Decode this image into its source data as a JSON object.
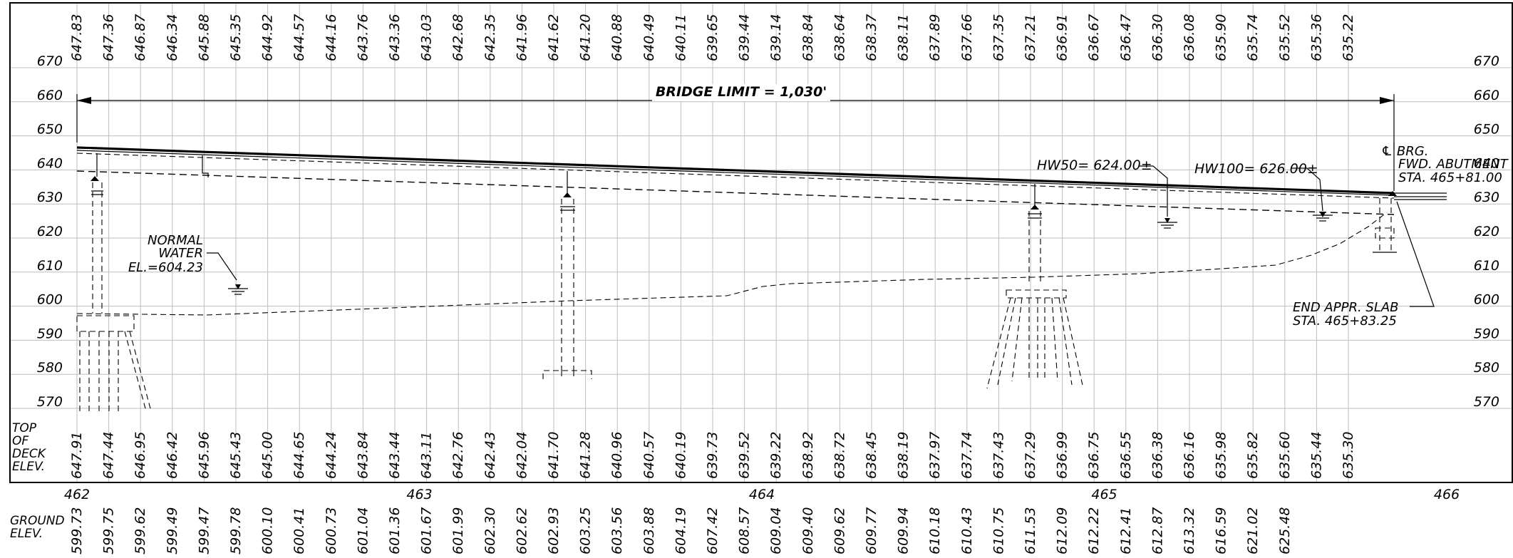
{
  "sheet": {
    "title": "BRIDGE LIMIT = 1,030'",
    "deck_label": [
      "TOP",
      "OF",
      "DECK",
      "ELEV."
    ],
    "ground_label": [
      "GROUND",
      "ELEV."
    ]
  },
  "elevation_scale": {
    "ticks": [
      670,
      660,
      650,
      640,
      630,
      620,
      610,
      600,
      590,
      580,
      570
    ],
    "range": [
      570,
      672
    ]
  },
  "stations": {
    "labels": [
      "462",
      "463",
      "464",
      "465",
      "466"
    ],
    "range": [
      462,
      466
    ]
  },
  "profile_grade_top": [
    "647.83",
    "647.36",
    "646.87",
    "646.34",
    "645.88",
    "645.35",
    "644.92",
    "644.57",
    "644.16",
    "643.76",
    "643.36",
    "643.03",
    "642.68",
    "642.35",
    "641.96",
    "641.62",
    "641.20",
    "640.88",
    "640.49",
    "640.11",
    "639.65",
    "639.44",
    "639.14",
    "638.84",
    "638.64",
    "638.37",
    "638.11",
    "637.89",
    "637.66",
    "637.35",
    "637.21",
    "636.91",
    "636.67",
    "636.47",
    "636.30",
    "636.08",
    "635.90",
    "635.74",
    "635.52",
    "635.36",
    "635.22"
  ],
  "top_of_deck_elev": [
    "647.91",
    "647.44",
    "646.95",
    "646.42",
    "645.96",
    "645.43",
    "645.00",
    "644.65",
    "644.24",
    "643.84",
    "643.44",
    "643.11",
    "642.76",
    "642.43",
    "642.04",
    "641.70",
    "641.28",
    "640.96",
    "640.57",
    "640.19",
    "639.73",
    "639.52",
    "639.22",
    "638.92",
    "638.72",
    "638.45",
    "638.19",
    "637.97",
    "637.74",
    "637.43",
    "637.29",
    "636.99",
    "636.75",
    "636.55",
    "636.38",
    "636.16",
    "635.98",
    "635.82",
    "635.60",
    "635.44",
    "635.30"
  ],
  "ground_elev": [
    "599.73",
    "599.75",
    "599.62",
    "599.49",
    "599.47",
    "599.78",
    "600.10",
    "600.41",
    "600.73",
    "601.04",
    "601.36",
    "601.67",
    "601.99",
    "602.30",
    "602.62",
    "602.93",
    "603.25",
    "603.56",
    "603.88",
    "604.19",
    "607.42",
    "608.57",
    "609.04",
    "609.40",
    "609.62",
    "609.77",
    "609.94",
    "610.18",
    "610.43",
    "610.75",
    "611.53",
    "612.09",
    "612.22",
    "612.41",
    "612.87",
    "613.32",
    "616.59",
    "621.02",
    "625.48"
  ],
  "annotations": {
    "normal_water": [
      "NORMAL",
      "WATER",
      "EL.=604.23"
    ],
    "hw50": "HW50= 624.00±",
    "hw100": "HW100= 626.00±",
    "bearing": [
      "℄ BRG.",
      "FWD. ABUTMENT",
      "STA. 465+81.00"
    ],
    "approach_slab": [
      "END APPR. SLAB",
      "STA. 465+83.25"
    ]
  },
  "water_levels": {
    "normal": 604.23,
    "hw50": 624.0,
    "hw100": 626.0
  },
  "stationing": {
    "bridge_length_ft": 1030,
    "fwd_abutment_sta": 465.81,
    "end_approach_slab_sta": 465.8325
  }
}
